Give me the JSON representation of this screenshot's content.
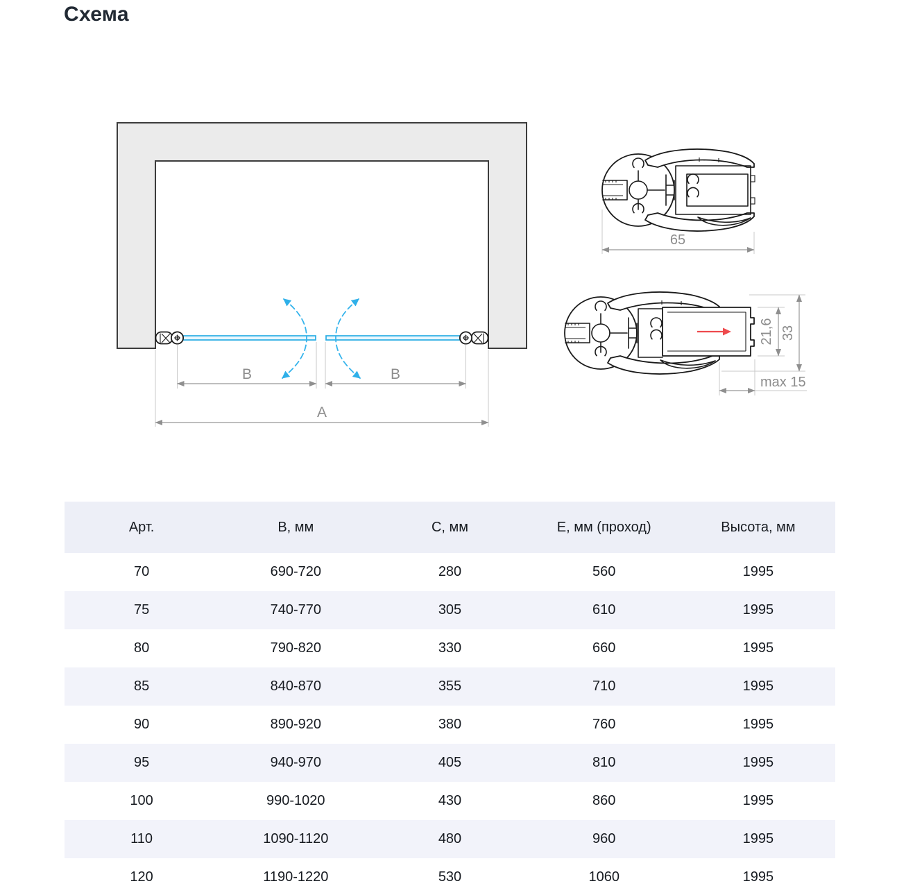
{
  "title": "Схема",
  "diagram": {
    "label_a": "A",
    "label_b_left": "B",
    "label_b_right": "B"
  },
  "profile_top": {
    "dim_width": "65"
  },
  "profile_bottom": {
    "dim_glass_pocket": "21,6",
    "dim_total": "33",
    "dim_adjust": "max 15"
  },
  "colors": {
    "glass_blue": "#29ade4",
    "swing_arc_blue": "#36b4ec",
    "dimension_gray": "#8c8c8c",
    "wall_fill": "#ebebeb",
    "red_arrow": "#ee4a4d",
    "table_header_bg": "#edeff7",
    "table_zebra_bg": "#f2f3fa"
  },
  "table": {
    "headers": [
      "Арт.",
      "В, мм",
      "С, мм",
      "Е, мм (проход)",
      "Высота, мм"
    ],
    "rows": [
      [
        "70",
        "690-720",
        "280",
        "560",
        "1995"
      ],
      [
        "75",
        "740-770",
        "305",
        "610",
        "1995"
      ],
      [
        "80",
        "790-820",
        "330",
        "660",
        "1995"
      ],
      [
        "85",
        "840-870",
        "355",
        "710",
        "1995"
      ],
      [
        "90",
        "890-920",
        "380",
        "760",
        "1995"
      ],
      [
        "95",
        "940-970",
        "405",
        "810",
        "1995"
      ],
      [
        "100",
        "990-1020",
        "430",
        "860",
        "1995"
      ],
      [
        "110",
        "1090-1120",
        "480",
        "960",
        "1995"
      ],
      [
        "120",
        "1190-1220",
        "530",
        "1060",
        "1995"
      ]
    ]
  }
}
